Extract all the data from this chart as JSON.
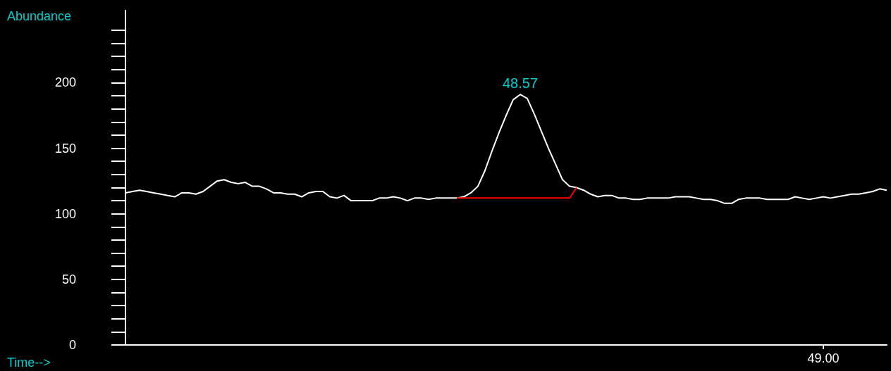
{
  "chart_data": {
    "type": "line",
    "xlabel": "Time-->",
    "ylabel": "Abundance",
    "categories": [
      null,
      null,
      null,
      null,
      null,
      null,
      null,
      null,
      null,
      null,
      null,
      null,
      null,
      null,
      null,
      null,
      null,
      null,
      null,
      null,
      null,
      null,
      null,
      null,
      null,
      null,
      null,
      null,
      null,
      null,
      null,
      null,
      null,
      null,
      null,
      null,
      null,
      null,
      null,
      null,
      null,
      null,
      null,
      null,
      null,
      null,
      null,
      null,
      null,
      null,
      null,
      null,
      null,
      null,
      null,
      null,
      null,
      null,
      null,
      null,
      null,
      null,
      null,
      null,
      null,
      null,
      null,
      null,
      null,
      null,
      null,
      null,
      null,
      null,
      null,
      null,
      null,
      null,
      null,
      null,
      null,
      null,
      null,
      null,
      null,
      null,
      null,
      null,
      null,
      null,
      null,
      null,
      null,
      null,
      null,
      null,
      null,
      null,
      null,
      "49.00",
      null,
      null,
      null,
      null,
      null,
      null,
      null,
      null,
      null
    ],
    "ylim": [
      0,
      255
    ],
    "yticks": [
      0,
      50,
      100,
      150,
      200
    ],
    "marker": "none",
    "grid": false,
    "annotations": [
      {
        "text": "48.57",
        "y": 191
      }
    ],
    "series": [
      {
        "color": "#ffffff",
        "values": [
          116,
          117,
          118,
          117,
          116,
          115,
          114,
          113,
          116,
          116,
          115,
          117,
          121,
          125,
          126,
          124,
          123,
          124,
          121,
          121,
          119,
          116,
          116,
          115,
          115,
          113,
          116,
          117,
          117,
          113,
          112,
          114,
          110,
          110,
          110,
          110,
          112,
          112,
          113,
          112,
          110,
          112,
          112,
          111,
          112,
          112,
          112,
          112,
          113,
          116,
          121,
          133,
          148,
          162,
          175,
          187,
          191,
          188,
          176,
          163,
          150,
          138,
          126,
          121,
          120,
          118,
          115,
          113,
          114,
          114,
          112,
          112,
          111,
          111,
          112,
          112,
          112,
          112,
          113,
          113,
          113,
          112,
          111,
          111,
          110,
          108,
          108,
          111,
          112,
          112,
          112,
          111,
          111,
          111,
          111,
          113,
          112,
          111,
          112,
          113,
          112,
          113,
          114,
          115,
          115,
          116,
          117,
          119,
          118
        ]
      },
      {
        "color": "#ff0000",
        "values": [
          null,
          null,
          null,
          null,
          null,
          null,
          null,
          null,
          null,
          null,
          null,
          null,
          null,
          null,
          null,
          null,
          null,
          null,
          null,
          null,
          null,
          null,
          null,
          null,
          null,
          null,
          null,
          null,
          null,
          null,
          null,
          null,
          null,
          null,
          null,
          null,
          null,
          null,
          null,
          null,
          null,
          null,
          null,
          null,
          null,
          null,
          null,
          112,
          112,
          112,
          112,
          112,
          112,
          112,
          112,
          112,
          112,
          112,
          112,
          112,
          112,
          112,
          112,
          112,
          120,
          null,
          null,
          null,
          null,
          null,
          null,
          null,
          null,
          null,
          null,
          null,
          null,
          null,
          null,
          null,
          null,
          null,
          null,
          null,
          null,
          null,
          null,
          null,
          null,
          null,
          null,
          null,
          null,
          null,
          null,
          null,
          null,
          null,
          null,
          null,
          null,
          null,
          null,
          null,
          null,
          null,
          null,
          null,
          null
        ]
      }
    ]
  }
}
